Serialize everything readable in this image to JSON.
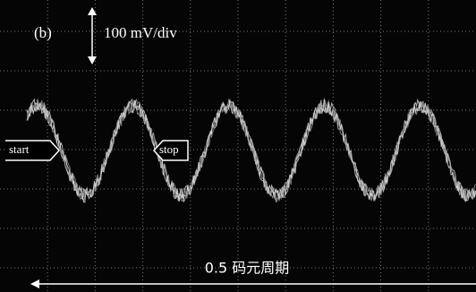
{
  "panel_label": "(b)",
  "scale_label": "100 mV/div",
  "markers": {
    "start": "start",
    "stop": "stop"
  },
  "span_label": "0.5 码元周期"
}
